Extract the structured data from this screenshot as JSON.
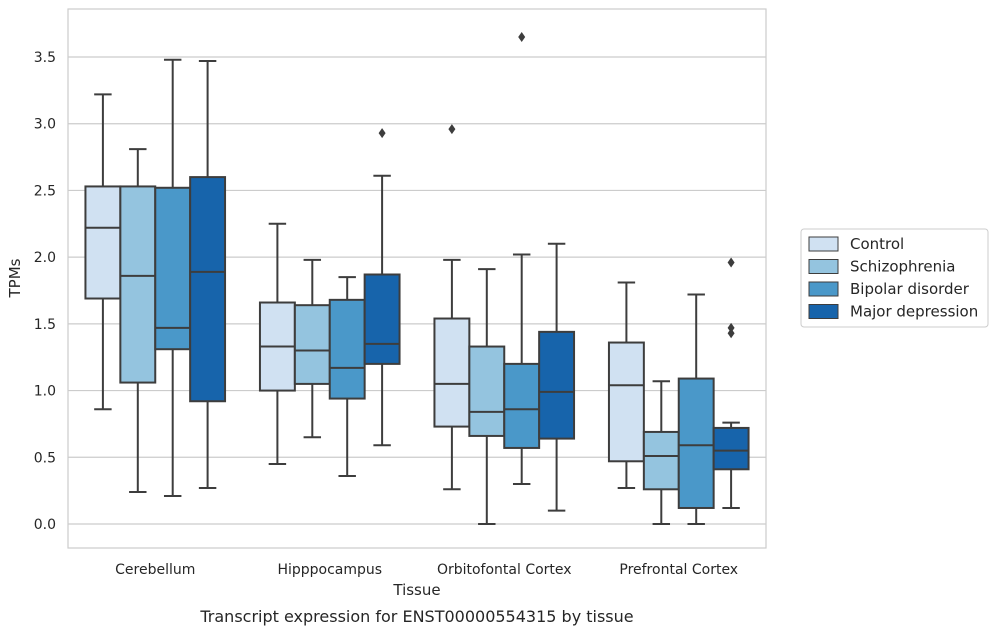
{
  "caption": "Transcript expression for ENST00000554315 by tissue",
  "chart_data": {
    "type": "box",
    "xlabel": "Tissue",
    "ylabel": "TPMs",
    "ylim": [
      -0.18,
      3.86
    ],
    "yticks": [
      "0.0",
      "0.5",
      "1.0",
      "1.5",
      "2.0",
      "2.5",
      "3.0",
      "3.5"
    ],
    "categories": [
      "Cerebellum",
      "Hipppocampus",
      "Orbitofontal Cortex",
      "Prefrontal Cortex"
    ],
    "grid": "horizontal",
    "legend_position": "right",
    "series": [
      {
        "name": "Control",
        "color": "#d0e1f2",
        "boxes": [
          {
            "whislo": 0.86,
            "q1": 1.69,
            "med": 2.22,
            "q3": 2.53,
            "whishi": 3.22,
            "fliers": []
          },
          {
            "whislo": 0.45,
            "q1": 1.0,
            "med": 1.33,
            "q3": 1.66,
            "whishi": 2.25,
            "fliers": []
          },
          {
            "whislo": 0.26,
            "q1": 0.73,
            "med": 1.05,
            "q3": 1.54,
            "whishi": 1.98,
            "fliers": [
              2.96
            ]
          },
          {
            "whislo": 0.27,
            "q1": 0.47,
            "med": 1.04,
            "q3": 1.36,
            "whishi": 1.81,
            "fliers": []
          }
        ]
      },
      {
        "name": "Schizophrenia",
        "color": "#94c4df",
        "boxes": [
          {
            "whislo": 0.24,
            "q1": 1.06,
            "med": 1.86,
            "q3": 2.53,
            "whishi": 2.81,
            "fliers": []
          },
          {
            "whislo": 0.65,
            "q1": 1.05,
            "med": 1.3,
            "q3": 1.64,
            "whishi": 1.98,
            "fliers": []
          },
          {
            "whislo": 0.0,
            "q1": 0.66,
            "med": 0.84,
            "q3": 1.33,
            "whishi": 1.91,
            "fliers": []
          },
          {
            "whislo": 0.0,
            "q1": 0.26,
            "med": 0.51,
            "q3": 0.69,
            "whishi": 1.07,
            "fliers": []
          }
        ]
      },
      {
        "name": "Bipolar disorder",
        "color": "#4a98c9",
        "boxes": [
          {
            "whislo": 0.21,
            "q1": 1.31,
            "med": 1.47,
            "q3": 2.52,
            "whishi": 3.48,
            "fliers": []
          },
          {
            "whislo": 0.36,
            "q1": 0.94,
            "med": 1.17,
            "q3": 1.68,
            "whishi": 1.85,
            "fliers": []
          },
          {
            "whislo": 0.3,
            "q1": 0.57,
            "med": 0.86,
            "q3": 1.2,
            "whishi": 2.02,
            "fliers": [
              3.65
            ]
          },
          {
            "whislo": 0.0,
            "q1": 0.12,
            "med": 0.59,
            "q3": 1.09,
            "whishi": 1.72,
            "fliers": []
          }
        ]
      },
      {
        "name": "Major depression",
        "color": "#1764ab",
        "boxes": [
          {
            "whislo": 0.27,
            "q1": 0.92,
            "med": 1.89,
            "q3": 2.6,
            "whishi": 3.47,
            "fliers": []
          },
          {
            "whislo": 0.59,
            "q1": 1.2,
            "med": 1.35,
            "q3": 1.87,
            "whishi": 2.61,
            "fliers": [
              2.93
            ]
          },
          {
            "whislo": 0.1,
            "q1": 0.64,
            "med": 0.99,
            "q3": 1.44,
            "whishi": 2.1,
            "fliers": []
          },
          {
            "whislo": 0.12,
            "q1": 0.41,
            "med": 0.55,
            "q3": 0.72,
            "whishi": 0.76,
            "fliers": [
              1.96,
              1.47,
              1.43
            ]
          }
        ]
      }
    ]
  }
}
